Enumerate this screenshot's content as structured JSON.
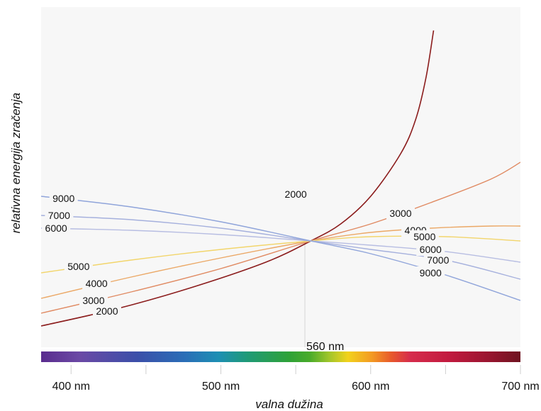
{
  "chart_data": {
    "type": "line",
    "xlabel": "valna dužina",
    "ylabel": "relativna energija zračenja",
    "xlim": [
      380,
      700
    ],
    "x_ticks": [
      {
        "value": 400,
        "label": "400 nm"
      },
      {
        "value": 500,
        "label": "500 nm"
      },
      {
        "value": 600,
        "label": "600 nm"
      },
      {
        "value": 700,
        "label": "700 nm"
      }
    ],
    "annotation": {
      "x": 560,
      "label": "560 nm"
    },
    "colors": {
      "2000": "#8b1c1c",
      "3000": "#e08a62",
      "4000": "#eba866",
      "5000": "#f2d56b",
      "6000": "#b7bde2",
      "7000": "#a5b0dd",
      "9000": "#8fa4da"
    },
    "series": [
      {
        "name": "2000",
        "x": [
          380,
          430,
          480,
          530,
          560,
          580,
          600,
          620,
          630,
          637,
          642
        ],
        "y": [
          0.08,
          0.16,
          0.26,
          0.38,
          0.48,
          0.56,
          0.69,
          0.89,
          1.05,
          1.25,
          1.47
        ]
      },
      {
        "name": "3000",
        "x": [
          380,
          440,
          500,
          560,
          600,
          640,
          680,
          700
        ],
        "y": [
          0.14,
          0.24,
          0.35,
          0.48,
          0.56,
          0.66,
          0.77,
          0.85
        ]
      },
      {
        "name": "4000",
        "x": [
          380,
          440,
          500,
          560,
          600,
          640,
          680,
          700
        ],
        "y": [
          0.21,
          0.31,
          0.4,
          0.48,
          0.52,
          0.54,
          0.55,
          0.55
        ]
      },
      {
        "name": "5000",
        "x": [
          380,
          440,
          500,
          560,
          600,
          650,
          700
        ],
        "y": [
          0.33,
          0.39,
          0.44,
          0.48,
          0.5,
          0.5,
          0.48
        ]
      },
      {
        "name": "6000",
        "x": [
          380,
          440,
          500,
          560,
          600,
          650,
          700
        ],
        "y": [
          0.54,
          0.53,
          0.51,
          0.48,
          0.46,
          0.43,
          0.38
        ]
      },
      {
        "name": "7000",
        "x": [
          380,
          440,
          500,
          560,
          600,
          650,
          700
        ],
        "y": [
          0.6,
          0.58,
          0.54,
          0.48,
          0.44,
          0.39,
          0.3
        ]
      },
      {
        "name": "9000",
        "x": [
          380,
          440,
          500,
          560,
          600,
          650,
          700
        ],
        "y": [
          0.69,
          0.64,
          0.57,
          0.48,
          0.42,
          0.32,
          0.2
        ]
      }
    ],
    "curve_labels": [
      {
        "text": "2000",
        "series": "2000",
        "x": 550,
        "y": 0.7
      },
      {
        "text": "3000",
        "series": "3000",
        "x": 620,
        "y": 0.61
      },
      {
        "text": "4000",
        "series": "4000",
        "x": 630,
        "y": 0.53
      },
      {
        "text": "5000",
        "series": "5000",
        "x": 636,
        "y": 0.5
      },
      {
        "text": "6000",
        "series": "6000",
        "x": 640,
        "y": 0.44
      },
      {
        "text": "7000",
        "series": "7000",
        "x": 645,
        "y": 0.39
      },
      {
        "text": "9000",
        "series": "9000",
        "x": 640,
        "y": 0.33
      },
      {
        "text": "9000",
        "series": "9000",
        "x": 395,
        "y": 0.68
      },
      {
        "text": "7000",
        "series": "7000",
        "x": 392,
        "y": 0.6
      },
      {
        "text": "6000",
        "series": "6000",
        "x": 390,
        "y": 0.54
      },
      {
        "text": "5000",
        "series": "5000",
        "x": 405,
        "y": 0.36
      },
      {
        "text": "4000",
        "series": "4000",
        "x": 417,
        "y": 0.28
      },
      {
        "text": "3000",
        "series": "3000",
        "x": 415,
        "y": 0.2
      },
      {
        "text": "2000",
        "series": "2000",
        "x": 424,
        "y": 0.15
      }
    ],
    "grid": false,
    "legend": "none"
  }
}
